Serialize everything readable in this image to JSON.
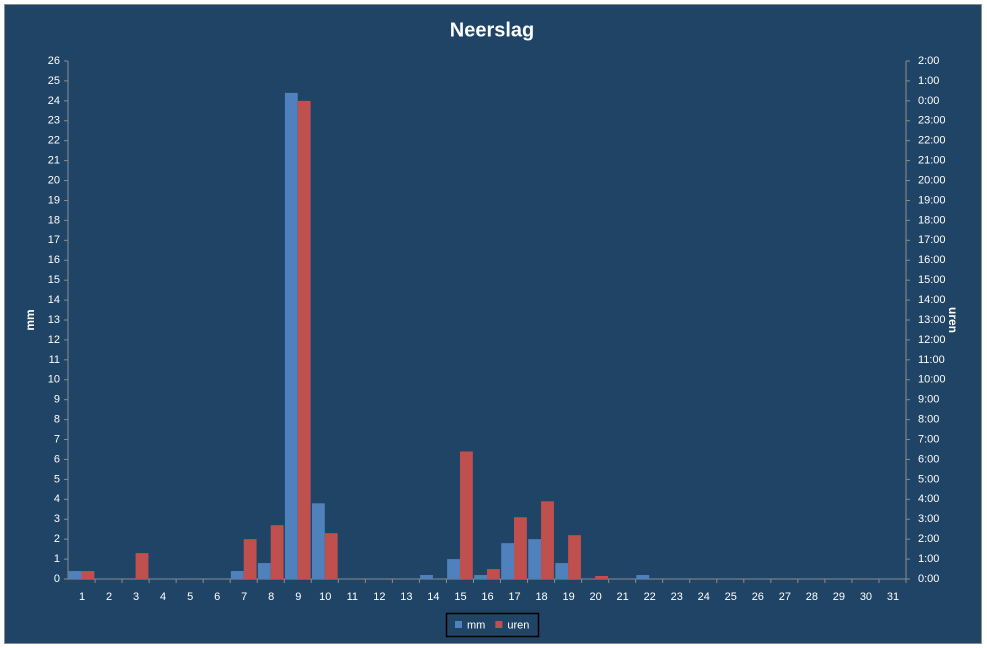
{
  "chart_data": {
    "type": "bar",
    "title": "Neerslag",
    "categories": [
      "1",
      "2",
      "3",
      "4",
      "5",
      "6",
      "7",
      "8",
      "9",
      "10",
      "11",
      "12",
      "13",
      "14",
      "15",
      "16",
      "17",
      "18",
      "19",
      "20",
      "21",
      "22",
      "23",
      "24",
      "25",
      "26",
      "27",
      "28",
      "29",
      "30",
      "31"
    ],
    "ylabel": "mm",
    "y2label": "uren",
    "ylim": [
      0,
      26
    ],
    "yticks": [
      0,
      1,
      2,
      3,
      4,
      5,
      6,
      7,
      8,
      9,
      10,
      11,
      12,
      13,
      14,
      15,
      16,
      17,
      18,
      19,
      20,
      21,
      22,
      23,
      24,
      25,
      26
    ],
    "y2lim": [
      0,
      26
    ],
    "y2ticks": [
      {
        "value": 0,
        "label": "0:00"
      },
      {
        "value": 1,
        "label": "1:00"
      },
      {
        "value": 2,
        "label": "2:00"
      },
      {
        "value": 3,
        "label": "3:00"
      },
      {
        "value": 4,
        "label": "4:00"
      },
      {
        "value": 5,
        "label": "5:00"
      },
      {
        "value": 6,
        "label": "6:00"
      },
      {
        "value": 7,
        "label": "7:00"
      },
      {
        "value": 8,
        "label": "8:00"
      },
      {
        "value": 9,
        "label": "9:00"
      },
      {
        "value": 10,
        "label": "10:00"
      },
      {
        "value": 11,
        "label": "11:00"
      },
      {
        "value": 12,
        "label": "12:00"
      },
      {
        "value": 13,
        "label": "13:00"
      },
      {
        "value": 14,
        "label": "14:00"
      },
      {
        "value": 15,
        "label": "15:00"
      },
      {
        "value": 16,
        "label": "16:00"
      },
      {
        "value": 17,
        "label": "17:00"
      },
      {
        "value": 18,
        "label": "18:00"
      },
      {
        "value": 19,
        "label": "19:00"
      },
      {
        "value": 20,
        "label": "20:00"
      },
      {
        "value": 21,
        "label": "21:00"
      },
      {
        "value": 22,
        "label": "22:00"
      },
      {
        "value": 23,
        "label": "23:00"
      },
      {
        "value": 24,
        "label": "0:00"
      },
      {
        "value": 25,
        "label": "1:00"
      },
      {
        "value": 26,
        "label": "2:00"
      }
    ],
    "legend": "bottom",
    "series": [
      {
        "name": "mm",
        "color": "#4f81bd",
        "values": [
          0.4,
          0,
          0,
          0,
          0,
          0,
          0.4,
          0.8,
          24.4,
          3.8,
          0,
          0,
          0,
          0.2,
          1.0,
          0.2,
          1.8,
          2.0,
          0.8,
          0,
          0,
          0.2,
          0,
          0,
          0,
          0,
          0,
          0,
          0,
          0,
          0
        ]
      },
      {
        "name": "uren",
        "color": "#c0504d",
        "axis": "y2",
        "values": [
          0.4,
          0,
          1.3,
          0,
          0,
          0,
          2.0,
          2.7,
          24.0,
          2.3,
          0,
          0,
          0,
          0,
          6.4,
          0.5,
          3.1,
          3.9,
          2.2,
          0.15,
          0,
          0,
          0,
          0,
          0,
          0,
          0,
          0,
          0,
          0,
          0
        ]
      }
    ]
  }
}
